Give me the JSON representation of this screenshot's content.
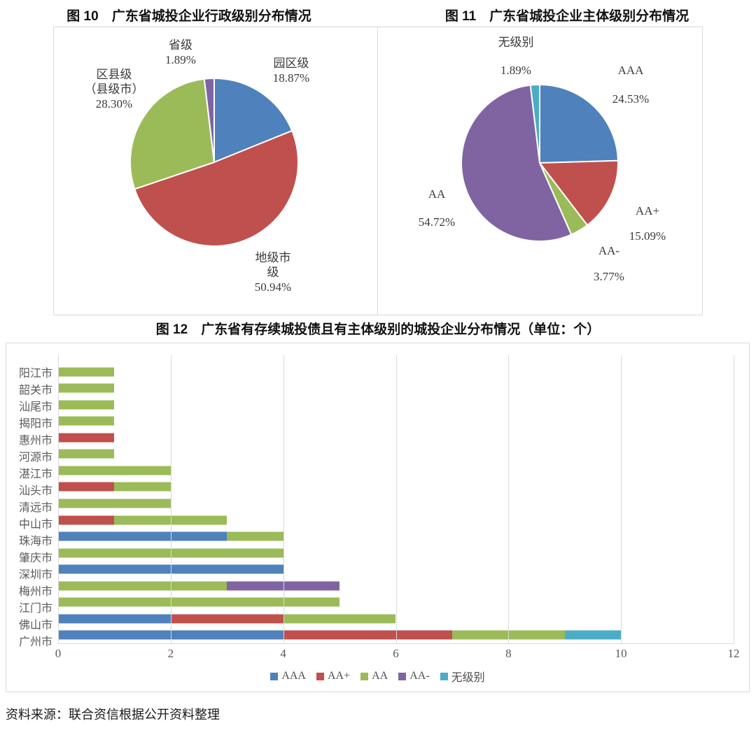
{
  "figure10": {
    "title": "图 10　广东省城投企业行政级别分布情况",
    "chart_data": {
      "type": "pie",
      "title": "广东省城投企业行政级别分布情况",
      "labels": [
        "园区级",
        "地级市级",
        "区县级（县级市）",
        "省级"
      ],
      "values": [
        18.87,
        50.94,
        28.3,
        1.89
      ],
      "colors": [
        "#4F81BD",
        "#C0504D",
        "#9BBB59",
        "#8064A2"
      ],
      "value_unit": "%",
      "start_angle": "12-oclock",
      "direction": "clockwise"
    },
    "callouts": {
      "yuanqu": [
        "园区级",
        "18.87%"
      ],
      "diji": [
        "地级市",
        "级",
        "50.94%"
      ],
      "quxian": [
        "区县级",
        "（县级市）",
        "28.30%"
      ],
      "sheng": [
        "省级",
        "1.89%"
      ]
    }
  },
  "figure11": {
    "title": "图 11　广东省城投企业主体级别分布情况",
    "chart_data": {
      "type": "pie",
      "title": "广东省城投企业主体级别分布情况",
      "labels": [
        "AAA",
        "AA+",
        "AA-",
        "AA",
        "无级别"
      ],
      "values": [
        24.53,
        15.09,
        3.77,
        54.72,
        1.89
      ],
      "colors": [
        "#4F81BD",
        "#C0504D",
        "#9BBB59",
        "#8064A2",
        "#4BACC6"
      ],
      "value_unit": "%",
      "start_angle": "12-oclock",
      "direction": "clockwise"
    },
    "callouts": {
      "aaa": [
        "AAA",
        "24.53%"
      ],
      "aaplus": [
        "AA+",
        "15.09%"
      ],
      "aaminus": [
        "AA-",
        "3.77%"
      ],
      "aa": [
        "AA",
        "54.72%"
      ],
      "wujibie": [
        "无级别",
        "1.89%"
      ]
    }
  },
  "figure12": {
    "title": "图 12　广东省有存续城投债且有主体级别的城投企业分布情况（单位：个）",
    "chart_data": {
      "type": "stacked-bar-horizontal",
      "categories": [
        "阳江市",
        "韶关市",
        "汕尾市",
        "揭阳市",
        "惠州市",
        "河源市",
        "湛江市",
        "汕头市",
        "清远市",
        "中山市",
        "珠海市",
        "肇庆市",
        "深圳市",
        "梅州市",
        "江门市",
        "佛山市",
        "广州市"
      ],
      "series": [
        {
          "name": "AAA",
          "color": "#4F81BD",
          "values": [
            0,
            0,
            0,
            0,
            0,
            0,
            0,
            0,
            0,
            0,
            3,
            0,
            4,
            0,
            0,
            2,
            4
          ]
        },
        {
          "name": "AA+",
          "color": "#C0504D",
          "values": [
            0,
            0,
            0,
            0,
            1,
            0,
            0,
            1,
            0,
            1,
            0,
            0,
            0,
            0,
            0,
            2,
            3
          ]
        },
        {
          "name": "AA",
          "color": "#9BBB59",
          "values": [
            1,
            1,
            1,
            1,
            0,
            1,
            2,
            1,
            2,
            2,
            1,
            4,
            0,
            3,
            5,
            2,
            2
          ]
        },
        {
          "name": "AA-",
          "color": "#8064A2",
          "values": [
            0,
            0,
            0,
            0,
            0,
            0,
            0,
            0,
            0,
            0,
            0,
            0,
            0,
            2,
            0,
            0,
            0
          ]
        },
        {
          "name": "无级别",
          "color": "#4BACC6",
          "values": [
            0,
            0,
            0,
            0,
            0,
            0,
            0,
            0,
            0,
            0,
            0,
            0,
            0,
            0,
            0,
            0,
            1
          ]
        }
      ],
      "xticks": [
        0,
        2,
        4,
        6,
        8,
        10,
        12
      ],
      "xlim": [
        0,
        12
      ],
      "grid": "vertical",
      "legend_position": "bottom"
    }
  },
  "source": "资料来源：联合资信根据公开资料整理"
}
